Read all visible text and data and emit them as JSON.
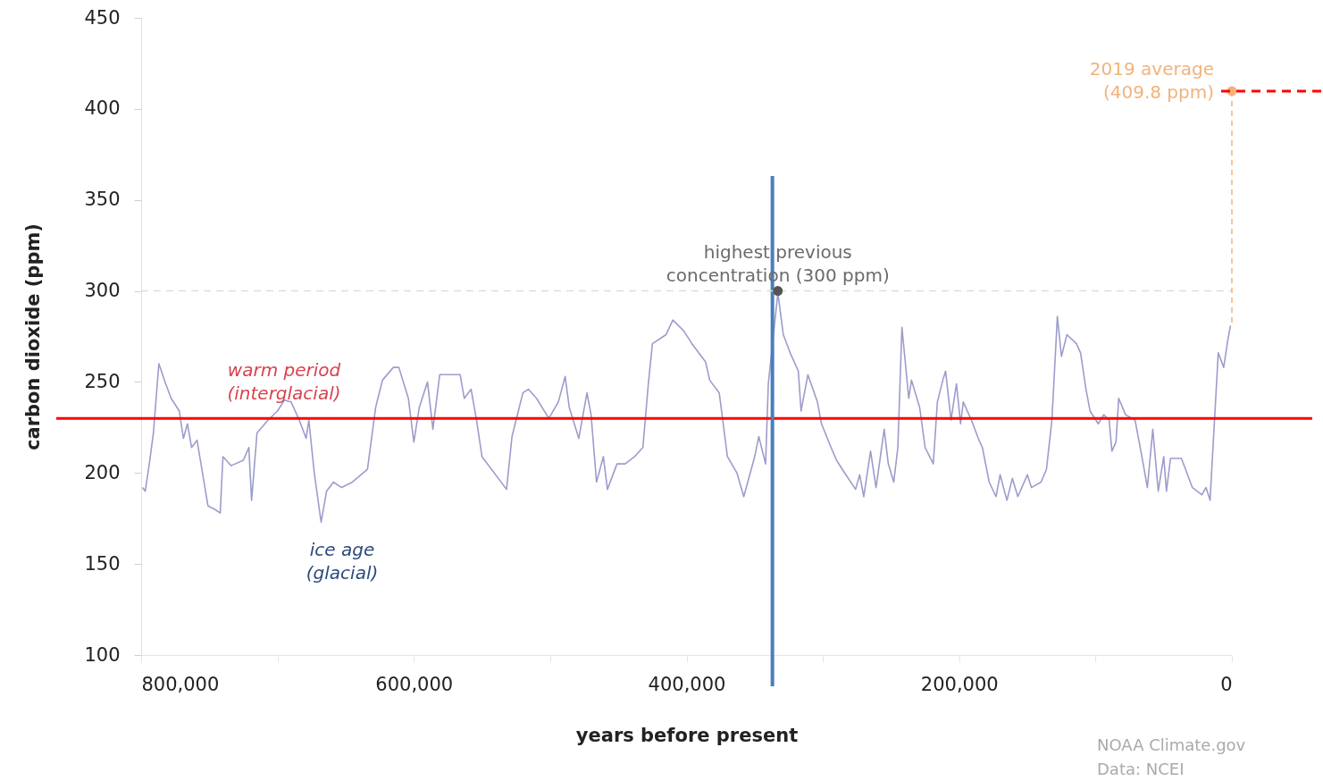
{
  "chart_data": {
    "type": "line",
    "xlabel": "years before present",
    "ylabel": "carbon dioxide (ppm)",
    "xlim": [
      800000,
      0
    ],
    "ylim": [
      100,
      450
    ],
    "xticks": [
      {
        "value": 800000,
        "label": "800,000"
      },
      {
        "value": 700000,
        "label": null
      },
      {
        "value": 600000,
        "label": "600,000"
      },
      {
        "value": 500000,
        "label": null
      },
      {
        "value": 400000,
        "label": "400,000"
      },
      {
        "value": 300000,
        "label": null
      },
      {
        "value": 200000,
        "label": "200,000"
      },
      {
        "value": 100000,
        "label": null
      },
      0
    ],
    "yticks": [
      100,
      150,
      200,
      250,
      300,
      350,
      400,
      450
    ],
    "x": [
      799000,
      797000,
      794000,
      791000,
      787000,
      782000,
      778000,
      772000,
      769000,
      766000,
      763000,
      759000,
      755000,
      751000,
      746000,
      742000,
      740000,
      734000,
      725000,
      721000,
      719000,
      715000,
      707000,
      700000,
      695000,
      690000,
      684000,
      679000,
      677000,
      673000,
      668000,
      664000,
      659000,
      653000,
      645000,
      634000,
      628000,
      623000,
      615000,
      611000,
      604000,
      600000,
      596000,
      590000,
      586000,
      581000,
      566000,
      563000,
      558000,
      554000,
      550000,
      532000,
      528000,
      520000,
      516000,
      510000,
      501000,
      494000,
      489000,
      486000,
      479000,
      473000,
      470000,
      466000,
      461000,
      458000,
      451000,
      445000,
      438000,
      432000,
      428000,
      425000,
      415000,
      410000,
      402000,
      396000,
      386000,
      383000,
      376000,
      370000,
      363000,
      358000,
      350000,
      347000,
      342000,
      340000,
      333000,
      329000,
      324000,
      318000,
      316000,
      311000,
      304000,
      301000,
      294000,
      290000,
      284000,
      276000,
      273000,
      270000,
      265000,
      261000,
      255000,
      252000,
      248000,
      245000,
      242000,
      237000,
      235000,
      229000,
      225000,
      219000,
      216000,
      212000,
      210000,
      206000,
      202000,
      199000,
      197000,
      191000,
      186000,
      183000,
      178000,
      173000,
      170000,
      165000,
      161000,
      157000,
      150000,
      147000,
      140000,
      136000,
      132000,
      128000,
      125000,
      121000,
      114000,
      111000,
      107000,
      104000,
      98000,
      94000,
      90000,
      88000,
      85000,
      83000,
      78000,
      71000,
      66000,
      62000,
      58000,
      54000,
      50000,
      48000,
      45000,
      37000,
      29000,
      22000,
      19000,
      16000,
      12000,
      10000,
      6000,
      3000,
      1000
    ],
    "series": [
      {
        "color": "#9c9ccc",
        "values": [
          192,
          190,
          205,
          222,
          260,
          249,
          241,
          234,
          219,
          227,
          214,
          218,
          200,
          182,
          180,
          178,
          209,
          204,
          207,
          214,
          185,
          222,
          229,
          234,
          240,
          239,
          229,
          219,
          229,
          200,
          173,
          190,
          195,
          192,
          195,
          202,
          236,
          251,
          258,
          258,
          241,
          217,
          236,
          250,
          224,
          254,
          254,
          241,
          246,
          229,
          209,
          191,
          220,
          244,
          246,
          241,
          230,
          239,
          253,
          236,
          219,
          244,
          232,
          195,
          209,
          191,
          205,
          205,
          209,
          214,
          249,
          271,
          276,
          284,
          278,
          271,
          261,
          251,
          244,
          209,
          200,
          187,
          209,
          220,
          205,
          249,
          299,
          276,
          266,
          256,
          234,
          254,
          239,
          227,
          214,
          207,
          200,
          191,
          199,
          187,
          212,
          192,
          224,
          205,
          195,
          214,
          280,
          241,
          251,
          236,
          214,
          205,
          239,
          251,
          256,
          229,
          249,
          227,
          239,
          229,
          219,
          214,
          195,
          187,
          199,
          185,
          197,
          187,
          199,
          192,
          195,
          202,
          229,
          286,
          264,
          276,
          271,
          266,
          246,
          234,
          227,
          232,
          229,
          212,
          217,
          241,
          232,
          229,
          209,
          192,
          224,
          190,
          209,
          190,
          208,
          208,
          192,
          188,
          192,
          185,
          239,
          266,
          258,
          273,
          281
        ]
      }
    ],
    "ref_lines": [
      {
        "axis": "y",
        "value": 230,
        "color": "#ff0000"
      },
      {
        "axis": "x",
        "value": 337000,
        "color": "#4a7ebb"
      },
      {
        "axis": "y",
        "value": 300,
        "color": "#dddddd",
        "line_style": "dashed"
      }
    ],
    "annotations": [
      "warm period\n(interglacial)",
      "ice age\n(glacial)",
      {
        "text": "highest previous\nconcentration (300 ppm)",
        "x": 333000,
        "y": 300
      },
      {
        "text": "2019 average\n(409.8 ppm)",
        "x": 0,
        "y": 409.8
      },
      "NOAA Climate.gov",
      "Data: NCEI"
    ]
  }
}
